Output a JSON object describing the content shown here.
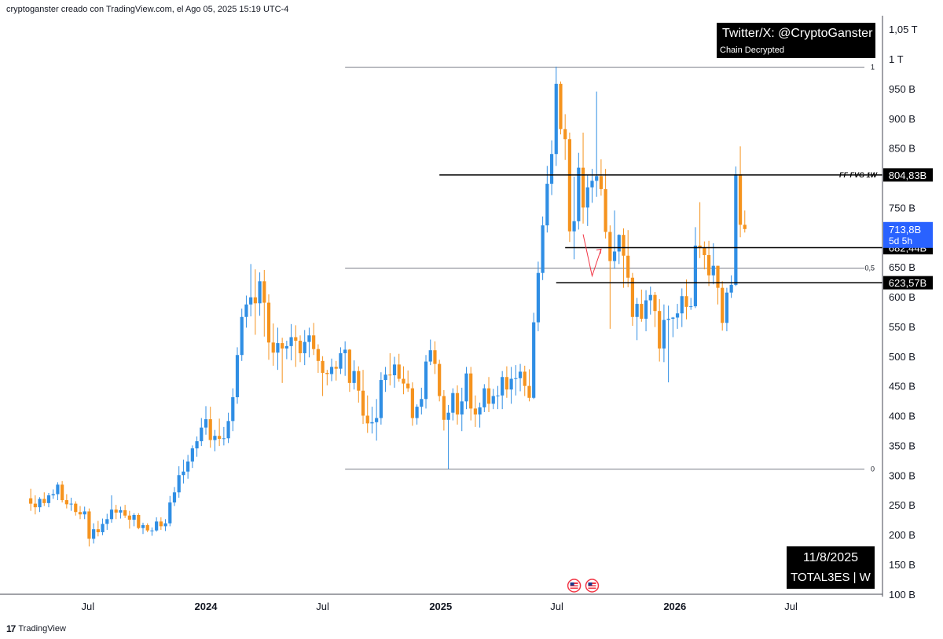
{
  "header": {
    "caption": "cryptoganster creado con TradingView.com, el Ago 05, 2025 15:19 UTC-4"
  },
  "watermark": {
    "handle": "Twitter/X: @CryptoGanster",
    "sub": "Chain Decrypted"
  },
  "info_box": {
    "date": "11/8/2025",
    "symbol": "TOTAL3ES | W"
  },
  "footer": {
    "brand": "TradingView",
    "logo_text": "17"
  },
  "colors": {
    "up": "#2f8ee4",
    "down": "#f5931e",
    "level_line": "#000000",
    "fib_line": "#787b86",
    "arrow": "#f23645",
    "current_price_bg": "#2962ff"
  },
  "chart_data": {
    "type": "candlestick",
    "timeframe": "W",
    "y_axis": {
      "scale": "linear",
      "ticks": [
        {
          "value": 100,
          "label": "100 B"
        },
        {
          "value": 150,
          "label": "150 B"
        },
        {
          "value": 200,
          "label": "200 B"
        },
        {
          "value": 250,
          "label": "250 B"
        },
        {
          "value": 300,
          "label": "300 B"
        },
        {
          "value": 350,
          "label": "350 B"
        },
        {
          "value": 400,
          "label": "400 B"
        },
        {
          "value": 450,
          "label": "450 B"
        },
        {
          "value": 500,
          "label": "500 B"
        },
        {
          "value": 550,
          "label": "550 B"
        },
        {
          "value": 600,
          "label": "600 B"
        },
        {
          "value": 650,
          "label": "650 B"
        },
        {
          "value": 750,
          "label": "750 B"
        },
        {
          "value": 850,
          "label": "850 B"
        },
        {
          "value": 900,
          "label": "900 B"
        },
        {
          "value": 950,
          "label": "950 B"
        },
        {
          "value": 1000,
          "label": "1 T"
        },
        {
          "value": 1050,
          "label": "1,05 T"
        }
      ]
    },
    "x_axis": {
      "ticks": [
        {
          "date": "2023-07-01",
          "label": "Jul",
          "bold": false
        },
        {
          "date": "2024-01-01",
          "label": "2024",
          "bold": true
        },
        {
          "date": "2024-07-01",
          "label": "Jul",
          "bold": false
        },
        {
          "date": "2025-01-01",
          "label": "2025",
          "bold": true
        },
        {
          "date": "2025-07-01",
          "label": "Jul",
          "bold": false
        },
        {
          "date": "2026-01-01",
          "label": "2026",
          "bold": true
        },
        {
          "date": "2026-07-01",
          "label": "Jul",
          "bold": false
        }
      ]
    },
    "first_candle_week": "2023-04-03",
    "levels": [
      {
        "label": "804,83B",
        "value": 804.83,
        "start_date": "2024-12-30",
        "annotation": "FF FVG 1W"
      },
      {
        "label": "682,44B",
        "value": 682.44,
        "start_date": "2025-07-14",
        "annotation": ""
      },
      {
        "label": "623,57B",
        "value": 623.57,
        "start_date": "2025-06-30",
        "annotation": ""
      }
    ],
    "current_price": {
      "label": "713,8B",
      "countdown": "5d 5h",
      "value": 713.8
    },
    "fib": {
      "start_date": "2024-08-05",
      "levels": [
        {
          "ratio": "1",
          "value": 986
        },
        {
          "ratio": "0,5",
          "value": 648
        },
        {
          "ratio": "0",
          "value": 310
        }
      ]
    },
    "projection_path": [
      {
        "date": "2025-08-11",
        "value": 705
      },
      {
        "date": "2025-08-25",
        "value": 635
      },
      {
        "date": "2025-09-08",
        "value": 680
      }
    ],
    "event_markers": [
      {
        "date": "2025-07-28",
        "icon": "us-flag-icon"
      },
      {
        "date": "2025-08-25",
        "icon": "us-flag-icon"
      }
    ],
    "candles": [
      {
        "o": 261,
        "h": 277,
        "l": 240,
        "c": 252
      },
      {
        "o": 252,
        "h": 266,
        "l": 234,
        "c": 246
      },
      {
        "o": 246,
        "h": 263,
        "l": 238,
        "c": 260
      },
      {
        "o": 260,
        "h": 271,
        "l": 248,
        "c": 253
      },
      {
        "o": 253,
        "h": 270,
        "l": 246,
        "c": 266
      },
      {
        "o": 266,
        "h": 276,
        "l": 260,
        "c": 268
      },
      {
        "o": 268,
        "h": 288,
        "l": 258,
        "c": 284
      },
      {
        "o": 284,
        "h": 290,
        "l": 254,
        "c": 258
      },
      {
        "o": 258,
        "h": 268,
        "l": 244,
        "c": 251
      },
      {
        "o": 251,
        "h": 262,
        "l": 240,
        "c": 252
      },
      {
        "o": 252,
        "h": 256,
        "l": 232,
        "c": 238
      },
      {
        "o": 238,
        "h": 248,
        "l": 226,
        "c": 234
      },
      {
        "o": 234,
        "h": 247,
        "l": 226,
        "c": 239
      },
      {
        "o": 239,
        "h": 244,
        "l": 180,
        "c": 193
      },
      {
        "o": 193,
        "h": 219,
        "l": 185,
        "c": 209
      },
      {
        "o": 209,
        "h": 223,
        "l": 197,
        "c": 204
      },
      {
        "o": 204,
        "h": 227,
        "l": 199,
        "c": 218
      },
      {
        "o": 218,
        "h": 235,
        "l": 208,
        "c": 226
      },
      {
        "o": 226,
        "h": 266,
        "l": 220,
        "c": 242
      },
      {
        "o": 242,
        "h": 250,
        "l": 226,
        "c": 237
      },
      {
        "o": 237,
        "h": 247,
        "l": 227,
        "c": 241
      },
      {
        "o": 241,
        "h": 250,
        "l": 228,
        "c": 232
      },
      {
        "o": 232,
        "h": 240,
        "l": 210,
        "c": 225
      },
      {
        "o": 225,
        "h": 236,
        "l": 214,
        "c": 233
      },
      {
        "o": 233,
        "h": 236,
        "l": 209,
        "c": 211
      },
      {
        "o": 211,
        "h": 220,
        "l": 201,
        "c": 216
      },
      {
        "o": 216,
        "h": 219,
        "l": 204,
        "c": 207
      },
      {
        "o": 207,
        "h": 212,
        "l": 198,
        "c": 207
      },
      {
        "o": 207,
        "h": 229,
        "l": 205,
        "c": 222
      },
      {
        "o": 222,
        "h": 229,
        "l": 208,
        "c": 214
      },
      {
        "o": 214,
        "h": 226,
        "l": 206,
        "c": 219
      },
      {
        "o": 219,
        "h": 265,
        "l": 214,
        "c": 254
      },
      {
        "o": 254,
        "h": 280,
        "l": 248,
        "c": 271
      },
      {
        "o": 271,
        "h": 315,
        "l": 262,
        "c": 300
      },
      {
        "o": 300,
        "h": 326,
        "l": 286,
        "c": 306
      },
      {
        "o": 306,
        "h": 334,
        "l": 294,
        "c": 323
      },
      {
        "o": 323,
        "h": 350,
        "l": 312,
        "c": 345
      },
      {
        "o": 345,
        "h": 365,
        "l": 331,
        "c": 357
      },
      {
        "o": 357,
        "h": 396,
        "l": 349,
        "c": 380
      },
      {
        "o": 380,
        "h": 416,
        "l": 368,
        "c": 394
      },
      {
        "o": 394,
        "h": 415,
        "l": 346,
        "c": 359
      },
      {
        "o": 359,
        "h": 376,
        "l": 340,
        "c": 366
      },
      {
        "o": 366,
        "h": 395,
        "l": 349,
        "c": 361
      },
      {
        "o": 361,
        "h": 381,
        "l": 350,
        "c": 362
      },
      {
        "o": 362,
        "h": 405,
        "l": 354,
        "c": 391
      },
      {
        "o": 391,
        "h": 446,
        "l": 374,
        "c": 431
      },
      {
        "o": 431,
        "h": 515,
        "l": 420,
        "c": 502
      },
      {
        "o": 502,
        "h": 580,
        "l": 492,
        "c": 566
      },
      {
        "o": 566,
        "h": 602,
        "l": 548,
        "c": 587
      },
      {
        "o": 587,
        "h": 655,
        "l": 567,
        "c": 599
      },
      {
        "o": 599,
        "h": 646,
        "l": 536,
        "c": 589
      },
      {
        "o": 589,
        "h": 641,
        "l": 568,
        "c": 626
      },
      {
        "o": 626,
        "h": 645,
        "l": 533,
        "c": 590
      },
      {
        "o": 590,
        "h": 604,
        "l": 494,
        "c": 523
      },
      {
        "o": 523,
        "h": 555,
        "l": 484,
        "c": 506
      },
      {
        "o": 506,
        "h": 548,
        "l": 477,
        "c": 522
      },
      {
        "o": 522,
        "h": 531,
        "l": 455,
        "c": 513
      },
      {
        "o": 513,
        "h": 526,
        "l": 495,
        "c": 517
      },
      {
        "o": 517,
        "h": 554,
        "l": 493,
        "c": 532
      },
      {
        "o": 532,
        "h": 552,
        "l": 482,
        "c": 526
      },
      {
        "o": 526,
        "h": 535,
        "l": 490,
        "c": 505
      },
      {
        "o": 505,
        "h": 544,
        "l": 485,
        "c": 524
      },
      {
        "o": 524,
        "h": 548,
        "l": 498,
        "c": 535
      },
      {
        "o": 535,
        "h": 556,
        "l": 502,
        "c": 512
      },
      {
        "o": 512,
        "h": 520,
        "l": 472,
        "c": 492
      },
      {
        "o": 492,
        "h": 500,
        "l": 433,
        "c": 472
      },
      {
        "o": 472,
        "h": 477,
        "l": 451,
        "c": 470
      },
      {
        "o": 470,
        "h": 496,
        "l": 458,
        "c": 482
      },
      {
        "o": 482,
        "h": 492,
        "l": 459,
        "c": 479
      },
      {
        "o": 479,
        "h": 515,
        "l": 470,
        "c": 505
      },
      {
        "o": 505,
        "h": 525,
        "l": 467,
        "c": 511
      },
      {
        "o": 511,
        "h": 512,
        "l": 440,
        "c": 455
      },
      {
        "o": 455,
        "h": 493,
        "l": 444,
        "c": 475
      },
      {
        "o": 475,
        "h": 483,
        "l": 422,
        "c": 442
      },
      {
        "o": 442,
        "h": 477,
        "l": 386,
        "c": 400
      },
      {
        "o": 400,
        "h": 434,
        "l": 371,
        "c": 387
      },
      {
        "o": 387,
        "h": 415,
        "l": 370,
        "c": 389
      },
      {
        "o": 389,
        "h": 428,
        "l": 358,
        "c": 396
      },
      {
        "o": 396,
        "h": 473,
        "l": 385,
        "c": 460
      },
      {
        "o": 460,
        "h": 482,
        "l": 440,
        "c": 469
      },
      {
        "o": 469,
        "h": 505,
        "l": 451,
        "c": 468
      },
      {
        "o": 468,
        "h": 499,
        "l": 447,
        "c": 486
      },
      {
        "o": 486,
        "h": 504,
        "l": 457,
        "c": 462
      },
      {
        "o": 462,
        "h": 483,
        "l": 436,
        "c": 454
      },
      {
        "o": 454,
        "h": 476,
        "l": 440,
        "c": 446
      },
      {
        "o": 446,
        "h": 456,
        "l": 383,
        "c": 396
      },
      {
        "o": 396,
        "h": 419,
        "l": 385,
        "c": 415
      },
      {
        "o": 415,
        "h": 447,
        "l": 402,
        "c": 428
      },
      {
        "o": 428,
        "h": 502,
        "l": 412,
        "c": 491
      },
      {
        "o": 491,
        "h": 528,
        "l": 485,
        "c": 510
      },
      {
        "o": 510,
        "h": 525,
        "l": 470,
        "c": 487
      },
      {
        "o": 487,
        "h": 494,
        "l": 424,
        "c": 433
      },
      {
        "o": 433,
        "h": 443,
        "l": 375,
        "c": 393
      },
      {
        "o": 393,
        "h": 418,
        "l": 310,
        "c": 405
      },
      {
        "o": 405,
        "h": 446,
        "l": 392,
        "c": 438
      },
      {
        "o": 438,
        "h": 451,
        "l": 385,
        "c": 402
      },
      {
        "o": 402,
        "h": 447,
        "l": 374,
        "c": 424
      },
      {
        "o": 424,
        "h": 482,
        "l": 411,
        "c": 471
      },
      {
        "o": 471,
        "h": 482,
        "l": 392,
        "c": 412
      },
      {
        "o": 412,
        "h": 434,
        "l": 381,
        "c": 402
      },
      {
        "o": 402,
        "h": 422,
        "l": 380,
        "c": 414
      },
      {
        "o": 414,
        "h": 453,
        "l": 406,
        "c": 446
      },
      {
        "o": 446,
        "h": 465,
        "l": 406,
        "c": 420
      },
      {
        "o": 420,
        "h": 445,
        "l": 411,
        "c": 433
      },
      {
        "o": 433,
        "h": 450,
        "l": 411,
        "c": 434
      },
      {
        "o": 434,
        "h": 475,
        "l": 411,
        "c": 465
      },
      {
        "o": 465,
        "h": 483,
        "l": 430,
        "c": 444
      },
      {
        "o": 444,
        "h": 482,
        "l": 420,
        "c": 462
      },
      {
        "o": 462,
        "h": 485,
        "l": 434,
        "c": 463
      },
      {
        "o": 463,
        "h": 487,
        "l": 441,
        "c": 474
      },
      {
        "o": 474,
        "h": 484,
        "l": 433,
        "c": 450
      },
      {
        "o": 450,
        "h": 478,
        "l": 424,
        "c": 430
      },
      {
        "o": 430,
        "h": 573,
        "l": 428,
        "c": 557
      },
      {
        "o": 557,
        "h": 659,
        "l": 542,
        "c": 640
      },
      {
        "o": 640,
        "h": 735,
        "l": 628,
        "c": 720
      },
      {
        "o": 720,
        "h": 820,
        "l": 708,
        "c": 790
      },
      {
        "o": 790,
        "h": 863,
        "l": 771,
        "c": 840
      },
      {
        "o": 840,
        "h": 987,
        "l": 820,
        "c": 958
      },
      {
        "o": 958,
        "h": 962,
        "l": 873,
        "c": 882
      },
      {
        "o": 882,
        "h": 907,
        "l": 830,
        "c": 865
      },
      {
        "o": 865,
        "h": 876,
        "l": 692,
        "c": 710
      },
      {
        "o": 710,
        "h": 802,
        "l": 663,
        "c": 727
      },
      {
        "o": 727,
        "h": 842,
        "l": 713,
        "c": 817
      },
      {
        "o": 817,
        "h": 876,
        "l": 723,
        "c": 750
      },
      {
        "o": 750,
        "h": 805,
        "l": 719,
        "c": 784
      },
      {
        "o": 784,
        "h": 815,
        "l": 758,
        "c": 795
      },
      {
        "o": 795,
        "h": 945,
        "l": 768,
        "c": 803
      },
      {
        "o": 803,
        "h": 831,
        "l": 770,
        "c": 781
      },
      {
        "o": 781,
        "h": 815,
        "l": 698,
        "c": 709
      },
      {
        "o": 709,
        "h": 720,
        "l": 546,
        "c": 660
      },
      {
        "o": 660,
        "h": 745,
        "l": 647,
        "c": 676
      },
      {
        "o": 676,
        "h": 705,
        "l": 655,
        "c": 704
      },
      {
        "o": 704,
        "h": 715,
        "l": 615,
        "c": 669
      },
      {
        "o": 669,
        "h": 712,
        "l": 616,
        "c": 632
      },
      {
        "o": 632,
        "h": 640,
        "l": 551,
        "c": 566
      },
      {
        "o": 566,
        "h": 598,
        "l": 527,
        "c": 588
      },
      {
        "o": 588,
        "h": 612,
        "l": 558,
        "c": 563
      },
      {
        "o": 563,
        "h": 611,
        "l": 542,
        "c": 594
      },
      {
        "o": 594,
        "h": 617,
        "l": 570,
        "c": 603
      },
      {
        "o": 603,
        "h": 608,
        "l": 549,
        "c": 576
      },
      {
        "o": 576,
        "h": 596,
        "l": 491,
        "c": 513
      },
      {
        "o": 513,
        "h": 587,
        "l": 490,
        "c": 561
      },
      {
        "o": 561,
        "h": 585,
        "l": 456,
        "c": 563
      },
      {
        "o": 563,
        "h": 566,
        "l": 532,
        "c": 565
      },
      {
        "o": 565,
        "h": 588,
        "l": 546,
        "c": 572
      },
      {
        "o": 572,
        "h": 614,
        "l": 549,
        "c": 601
      },
      {
        "o": 601,
        "h": 629,
        "l": 562,
        "c": 583
      },
      {
        "o": 583,
        "h": 598,
        "l": 578,
        "c": 584
      },
      {
        "o": 584,
        "h": 717,
        "l": 581,
        "c": 686
      },
      {
        "o": 686,
        "h": 759,
        "l": 665,
        "c": 682
      },
      {
        "o": 682,
        "h": 693,
        "l": 646,
        "c": 670
      },
      {
        "o": 670,
        "h": 694,
        "l": 618,
        "c": 636
      },
      {
        "o": 636,
        "h": 690,
        "l": 621,
        "c": 652
      },
      {
        "o": 652,
        "h": 652,
        "l": 587,
        "c": 615
      },
      {
        "o": 615,
        "h": 626,
        "l": 543,
        "c": 556
      },
      {
        "o": 556,
        "h": 615,
        "l": 542,
        "c": 607
      },
      {
        "o": 607,
        "h": 636,
        "l": 598,
        "c": 620
      },
      {
        "o": 620,
        "h": 819,
        "l": 618,
        "c": 806
      },
      {
        "o": 806,
        "h": 853,
        "l": 700,
        "c": 721
      },
      {
        "o": 721,
        "h": 745,
        "l": 708,
        "c": 713.8
      }
    ]
  }
}
